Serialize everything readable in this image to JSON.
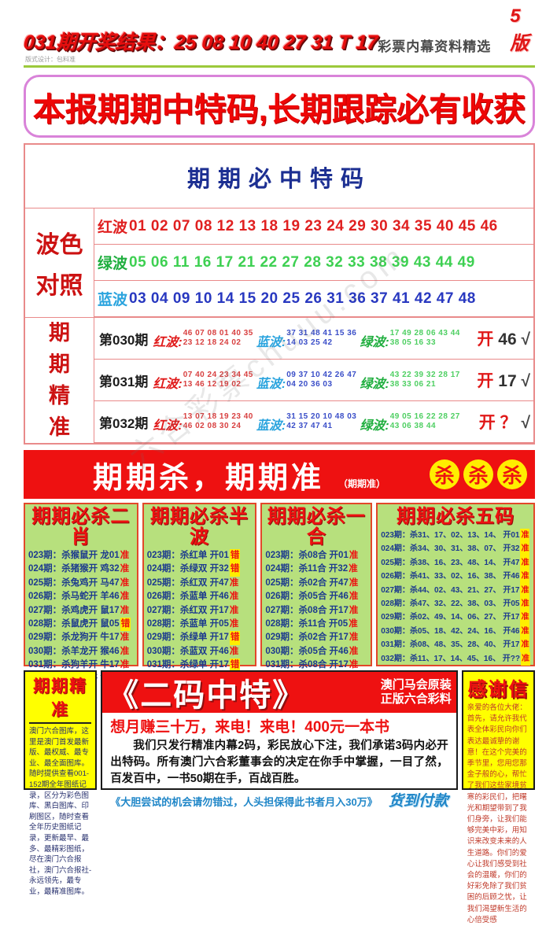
{
  "header": {
    "result_line": "031期开奖结果：25 08 10 40 27 31 T 17",
    "design_credit": "版式设计：包料准",
    "subtitle": "彩票内幕资料精选",
    "page_label": "5版"
  },
  "banner": {
    "text": "本报期期中特码,长期跟踪必有收获"
  },
  "special_box": {
    "title": "期期必中特码",
    "wave_label_line1": "波色",
    "wave_label_line2": "对照",
    "waves": [
      {
        "label": "红波",
        "numbers": "01 02 07 08 12 13 18 19 23 24 29 30 34 35 40 45 46",
        "cls": "wred"
      },
      {
        "label": "绿波",
        "numbers": "05 06 11 16 17 21 22 27 28 32 33 38 39 43 44 49",
        "cls": "wgreen"
      },
      {
        "label": "蓝波",
        "numbers": "03 04 09 10 14 15 20 25 26 31 36 37 41 42 47 48",
        "cls": "wblue"
      }
    ],
    "precise_label": [
      "期",
      "期",
      "精",
      "准"
    ],
    "rounds": [
      {
        "period": "第030期",
        "red_label": "红波:",
        "red_line1": "46 07 08 01 40 35",
        "red_line2": "23 12 18 24 02",
        "blue_label": "蓝波:",
        "blue_line1": "37 31 48 41 15 36",
        "blue_line2": "14 03 25 42",
        "green_label": "绿波:",
        "green_line1": "17 49 28 06 43 44",
        "green_line2": "38 05 16 33",
        "result_open": "开",
        "result_value": "46",
        "result_class": "dark",
        "result_check": "√"
      },
      {
        "period": "第031期",
        "red_label": "红波:",
        "red_line1": "07 40 24 23 34 45",
        "red_line2": "13 46 12 19 02",
        "blue_label": "蓝波:",
        "blue_line1": "09 37 10 42 26 47",
        "blue_line2": "04 20 36 03",
        "green_label": "绿波:",
        "green_line1": "43 22 39 32 28 17",
        "green_line2": "38 33 06 21",
        "result_open": "开",
        "result_value": "17",
        "result_class": "dark",
        "result_check": "√"
      },
      {
        "period": "第032期",
        "red_label": "红波:",
        "red_line1": "13 07 18 19 23 40",
        "red_line2": "46 02 08 30 24",
        "blue_label": "蓝波:",
        "blue_line1": "31 15 20 10 48 03",
        "blue_line2": "42 37 47 41",
        "green_label": "绿波:",
        "green_line1": "49 05 16 22 28 27",
        "green_line2": "43 06 38 44",
        "result_open": "开",
        "result_value": "？",
        "result_class": "q",
        "result_check": "√"
      }
    ]
  },
  "kill_banner": {
    "text": "期期杀，期期准",
    "sub": "（期期准）",
    "badges": [
      "杀",
      "杀",
      "杀"
    ]
  },
  "kill_columns": [
    {
      "title": "期期必杀二肖",
      "rows": [
        {
          "p": "023期：",
          "t": "杀猴鼠开 龙01",
          "v": "准",
          "c": "ok"
        },
        {
          "p": "024期：",
          "t": "杀猪猴开 鸡32",
          "v": "准",
          "c": "ok"
        },
        {
          "p": "025期：",
          "t": "杀兔鸡开 马47",
          "v": "准",
          "c": "ok"
        },
        {
          "p": "026期：",
          "t": "杀马蛇开 羊46",
          "v": "准",
          "c": "ok"
        },
        {
          "p": "027期：",
          "t": "杀鸡虎开 鼠17",
          "v": "准",
          "c": "ok"
        },
        {
          "p": "028期：",
          "t": "杀鼠虎开 鼠05",
          "v": "错",
          "c": "err"
        },
        {
          "p": "029期：",
          "t": "杀龙狗开 牛17",
          "v": "准",
          "c": "ok"
        },
        {
          "p": "030期：",
          "t": "杀羊龙开 猴46",
          "v": "准",
          "c": "ok"
        },
        {
          "p": "031期：",
          "t": "杀狗羊开 牛17",
          "v": "准",
          "c": "ok"
        },
        {
          "p": "032期：",
          "t": "杀牛龙开 ？？",
          "v": "准",
          "c": "ok"
        }
      ]
    },
    {
      "title": "期期必杀半波",
      "rows": [
        {
          "p": "023期：",
          "t": "杀红单 开01",
          "v": "错",
          "c": "err"
        },
        {
          "p": "024期：",
          "t": "杀绿双 开32",
          "v": "错",
          "c": "err"
        },
        {
          "p": "025期：",
          "t": "杀红双 开47",
          "v": "准",
          "c": "ok"
        },
        {
          "p": "026期：",
          "t": "杀蓝单 开46",
          "v": "准",
          "c": "ok"
        },
        {
          "p": "027期：",
          "t": "杀红双 开17",
          "v": "准",
          "c": "ok"
        },
        {
          "p": "028期：",
          "t": "杀蓝单 开05",
          "v": "准",
          "c": "ok"
        },
        {
          "p": "029期：",
          "t": "杀绿单 开17",
          "v": "错",
          "c": "err"
        },
        {
          "p": "030期：",
          "t": "杀蓝双 开46",
          "v": "准",
          "c": "ok"
        },
        {
          "p": "031期：",
          "t": "杀绿单 开17",
          "v": "错",
          "c": "err"
        },
        {
          "p": "032期：",
          "t": "杀蓝双 开??",
          "v": "准",
          "c": "ok"
        }
      ]
    },
    {
      "title": "期期必杀一合",
      "rows": [
        {
          "p": "023期：",
          "t": "杀08合 开01",
          "v": "准",
          "c": "ok"
        },
        {
          "p": "024期：",
          "t": "杀11合 开32",
          "v": "准",
          "c": "ok"
        },
        {
          "p": "025期：",
          "t": "杀02合 开47",
          "v": "准",
          "c": "ok"
        },
        {
          "p": "026期：",
          "t": "杀05合 开46",
          "v": "准",
          "c": "ok"
        },
        {
          "p": "027期：",
          "t": "杀08合 开17",
          "v": "准",
          "c": "ok"
        },
        {
          "p": "028期：",
          "t": "杀11合 开05",
          "v": "准",
          "c": "ok"
        },
        {
          "p": "029期：",
          "t": "杀02合 开17",
          "v": "准",
          "c": "ok"
        },
        {
          "p": "030期：",
          "t": "杀05合 开46",
          "v": "准",
          "c": "ok"
        },
        {
          "p": "031期：",
          "t": "杀08合 开17",
          "v": "准",
          "c": "ok"
        },
        {
          "p": "032期：",
          "t": "杀11合 开??",
          "v": "准",
          "c": "ok"
        }
      ]
    },
    {
      "title": "期期必杀五码",
      "rows": [
        {
          "p": "023期：",
          "t": "杀31、17、02、13、14、 开01",
          "v": "准",
          "c": "okhl"
        },
        {
          "p": "024期：",
          "t": "杀34、30、31、38、07、 开32",
          "v": "准",
          "c": "okhl"
        },
        {
          "p": "025期：",
          "t": "杀38、16、23、48、14、 开47",
          "v": "准",
          "c": "okhl"
        },
        {
          "p": "026期：",
          "t": "杀41、33、02、16、38、 开46",
          "v": "准",
          "c": "okhl"
        },
        {
          "p": "027期：",
          "t": "杀44、02、43、21、27、 开17",
          "v": "准",
          "c": "okhl"
        },
        {
          "p": "028期：",
          "t": "杀47、32、22、38、03、 开05",
          "v": "准",
          "c": "okhl"
        },
        {
          "p": "029期：",
          "t": "杀02、49、14、06、27、 开17",
          "v": "准",
          "c": "okhl"
        },
        {
          "p": "030期：",
          "t": "杀05、18、42、24、16、 开46",
          "v": "准",
          "c": "okhl"
        },
        {
          "p": "031期：",
          "t": "杀08、48、35、28、40、 开17",
          "v": "准",
          "c": "okhl"
        },
        {
          "p": "032期：",
          "t": "杀11、17、14、45、16、 开??",
          "v": "准",
          "c": "okhl"
        }
      ]
    }
  ],
  "bottom": {
    "left": {
      "title": "期期精准",
      "body": "澳门六合图库，这里是澳门首发最新版、最权威、最专业、最全面图库。随时提供查看001-152期全年图纸记录，区分为彩色图库、黑白图库、印刷图区，随时查看全年历史图纸记录，更新最早、最多、最精彩图纸，尽在澳门六合报社，澳门六合报社-永远领先，最专业，最精准图库。"
    },
    "center": {
      "title": "《二码中特》",
      "badge_line1": "澳门马会原装",
      "badge_line2": "正版六合彩料",
      "subtitle": "想月赚三十万，来电！来电！400元一本书",
      "body": "我们只发行精准内幕2码，彩民放心下注，我们承诺3码内必开出特码。所有澳门六合彩董事会的决定在你手中掌握，一目了然，百发百中，一书50期在手，百战百胜。",
      "promo": "《大胆尝试的机会请勿错过，人头担保得此书者月入30万》",
      "cod": "货到付款"
    },
    "right": {
      "title": "感谢信",
      "greeting": "亲爱的各位大佬：",
      "body": "首先，请允许我代表全体彩民向你们表达最诚挚的谢意！在这个完美的季节里，您用您那金子般的心，帮忙了我们这些家境贫寒的彩民们，把曙光和期望带到了我们身旁，让我们能够完美中彩，用知识来改变未来的人生道路。你们的爱心让我们感受到社会的温暖，你们的好彩免除了我们贫困的后顾之忧，让我们渴望新生活的心倍受感"
    }
  },
  "watermark": "六合彩票chuuu.com",
  "colors": {
    "accent_red": "#ee1111",
    "banner_border": "#d983d9",
    "navy_title": "#1c2f92",
    "green_wave": "#3ed052",
    "blue_wave": "#2838c0",
    "cyan_label": "#2ba4de",
    "column_bg": "#b7e07d",
    "yellow_box": "#ffff00",
    "badge_yellow": "#ffee00",
    "rule_green": "#9cc93c"
  }
}
